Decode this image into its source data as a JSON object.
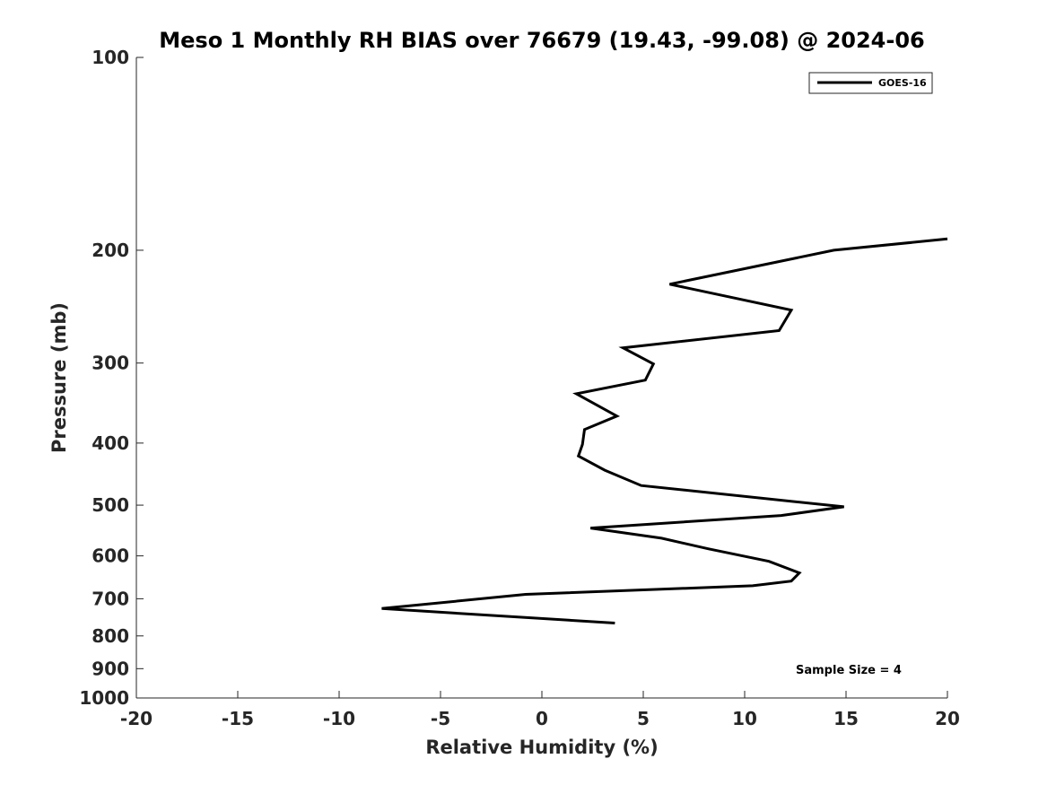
{
  "chart_data": {
    "type": "line",
    "title": "Meso 1 Monthly RH BIAS over 76679 (19.43, -99.08) @ 2024-06",
    "xlabel": "Relative Humidity (%)",
    "ylabel": "Pressure (mb)",
    "xlim": [
      -20,
      20
    ],
    "ylim": [
      100,
      1000
    ],
    "yscale": "log",
    "y_reversed": true,
    "xticks": [
      -20,
      -15,
      -10,
      -5,
      0,
      5,
      10,
      15,
      20
    ],
    "xtick_labels": [
      "-20",
      "-15",
      "-10",
      "-5",
      "0",
      "5",
      "10",
      "15",
      "20"
    ],
    "yticks": [
      100,
      200,
      300,
      400,
      500,
      600,
      700,
      800,
      900,
      1000
    ],
    "ytick_labels": [
      "100",
      "200",
      "300",
      "400",
      "500",
      "600",
      "700",
      "800",
      "900",
      "1000"
    ],
    "grid": false,
    "legend_position": "top-right",
    "annotation": "Sample Size = 4",
    "series": [
      {
        "name": "GOES-16",
        "color": "#000000",
        "points": [
          {
            "x": 20.0,
            "y": 192
          },
          {
            "x": 14.4,
            "y": 200
          },
          {
            "x": 6.3,
            "y": 226
          },
          {
            "x": 12.3,
            "y": 248
          },
          {
            "x": 11.7,
            "y": 267
          },
          {
            "x": 4.0,
            "y": 284
          },
          {
            "x": 5.5,
            "y": 301
          },
          {
            "x": 5.1,
            "y": 319
          },
          {
            "x": 1.7,
            "y": 335
          },
          {
            "x": 3.7,
            "y": 363
          },
          {
            "x": 2.1,
            "y": 381
          },
          {
            "x": 2.0,
            "y": 402
          },
          {
            "x": 1.8,
            "y": 419
          },
          {
            "x": 3.1,
            "y": 441
          },
          {
            "x": 4.9,
            "y": 466
          },
          {
            "x": 14.9,
            "y": 503
          },
          {
            "x": 11.8,
            "y": 519
          },
          {
            "x": 2.4,
            "y": 543
          },
          {
            "x": 5.9,
            "y": 563
          },
          {
            "x": 8.2,
            "y": 585
          },
          {
            "x": 11.2,
            "y": 612
          },
          {
            "x": 12.7,
            "y": 638
          },
          {
            "x": 12.3,
            "y": 657
          },
          {
            "x": 10.4,
            "y": 668
          },
          {
            "x": -0.8,
            "y": 689
          },
          {
            "x": -7.9,
            "y": 725
          },
          {
            "x": 3.6,
            "y": 764
          }
        ]
      }
    ]
  }
}
